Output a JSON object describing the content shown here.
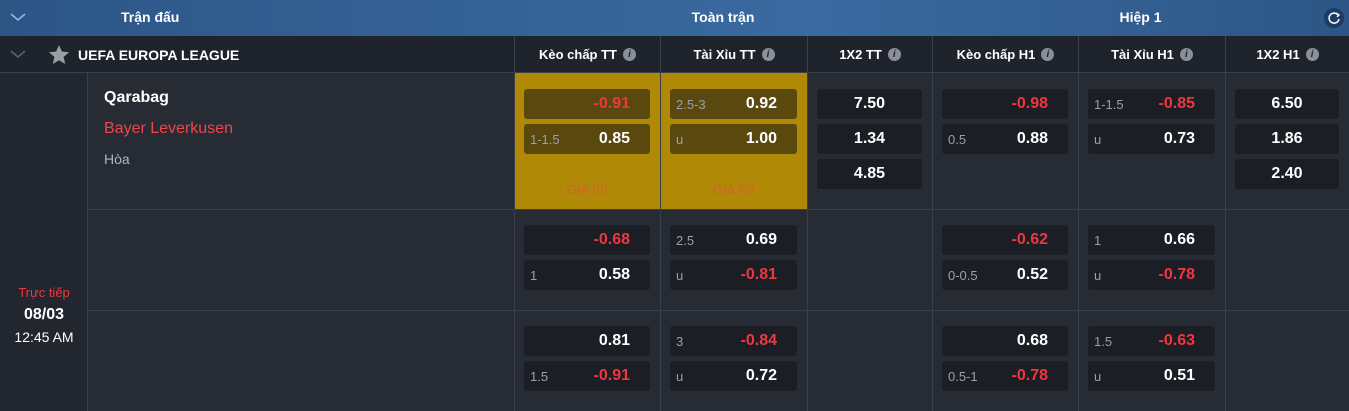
{
  "header": {
    "match": "Trận đấu",
    "full": "Toàn trận",
    "half": "Hiệp 1"
  },
  "league": "UEFA EUROPA LEAGUE",
  "columns": [
    "Kèo chấp TT",
    "Tài Xỉu TT",
    "1X2 TT",
    "Kèo chấp H1",
    "Tài Xỉu H1",
    "1X2 H1"
  ],
  "match": {
    "home": "Qarabag",
    "away": "Bayer Leverkusen",
    "draw": "Hòa",
    "status": "Trực tiếp",
    "date": "08/03",
    "time": "12:45 AM"
  },
  "rows": [
    {
      "cells": [
        {
          "boxes": [
            {
              "odds": "-0.91"
            },
            {
              "line": "1-1.5",
              "odds": "0.85"
            }
          ],
          "tag": "Giá tốt"
        },
        {
          "boxes": [
            {
              "line": "2.5-3",
              "odds": "0.92"
            },
            {
              "line": "u",
              "odds": "1.00"
            }
          ],
          "tag": "Giá tốt"
        },
        {
          "boxes": [
            {
              "odds": "7.50"
            },
            {
              "odds": "1.34"
            },
            {
              "odds": "4.85"
            }
          ]
        },
        {
          "boxes": [
            {
              "odds": "-0.98"
            },
            {
              "line": "0.5",
              "odds": "0.88"
            }
          ]
        },
        {
          "boxes": [
            {
              "line": "1-1.5",
              "odds": "-0.85"
            },
            {
              "line": "u",
              "odds": "0.73"
            }
          ]
        },
        {
          "boxes": [
            {
              "odds": "6.50"
            },
            {
              "odds": "1.86"
            },
            {
              "odds": "2.40"
            }
          ]
        }
      ]
    },
    {
      "cells": [
        {
          "boxes": [
            {
              "odds": "-0.68"
            },
            {
              "line": "1",
              "odds": "0.58"
            }
          ]
        },
        {
          "boxes": [
            {
              "line": "2.5",
              "odds": "0.69"
            },
            {
              "line": "u",
              "odds": "-0.81"
            }
          ]
        },
        {
          "boxes": []
        },
        {
          "boxes": [
            {
              "odds": "-0.62"
            },
            {
              "line": "0-0.5",
              "odds": "0.52"
            }
          ]
        },
        {
          "boxes": [
            {
              "line": "1",
              "odds": "0.66"
            },
            {
              "line": "u",
              "odds": "-0.78"
            }
          ]
        },
        {
          "boxes": []
        }
      ]
    },
    {
      "cells": [
        {
          "boxes": [
            {
              "odds": "0.81"
            },
            {
              "line": "1.5",
              "odds": "-0.91"
            }
          ]
        },
        {
          "boxes": [
            {
              "line": "3",
              "odds": "-0.84"
            },
            {
              "line": "u",
              "odds": "0.72"
            }
          ]
        },
        {
          "boxes": []
        },
        {
          "boxes": [
            {
              "odds": "0.68"
            },
            {
              "line": "0.5-1",
              "odds": "-0.78"
            }
          ]
        },
        {
          "boxes": [
            {
              "line": "1.5",
              "odds": "-0.63"
            },
            {
              "line": "u",
              "odds": "0.51"
            }
          ]
        },
        {
          "boxes": []
        }
      ]
    }
  ]
}
